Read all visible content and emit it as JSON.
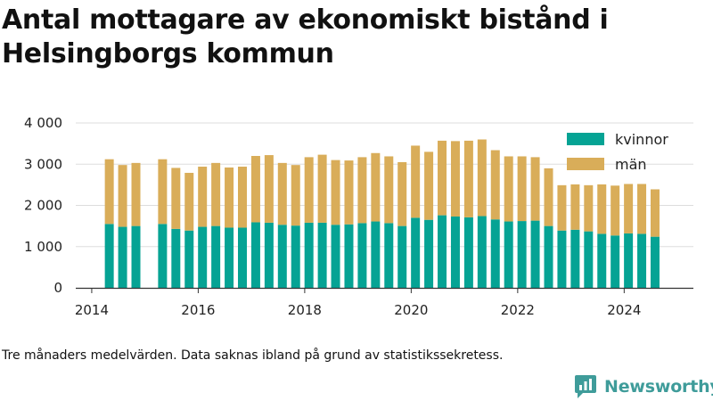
{
  "title": "Antal mottagare av ekonomiskt bistånd i Helsingborgs kommun",
  "note": "Tre månaders medelvärden. Data saknas ibland på grund av statistikssekretess.",
  "brand": {
    "name": "Newsworthy",
    "icon": "newsworthy-logo-icon",
    "color": "#3f9c9a"
  },
  "colors": {
    "kvinnor": "#05a394",
    "man": "#d9ad59",
    "axis": "#333333",
    "grid": "#dddddd"
  },
  "chart_data": {
    "type": "bar",
    "stacked": true,
    "title": "Antal mottagare av ekonomiskt bistånd i Helsingborgs kommun",
    "xlabel": "",
    "ylabel": "",
    "xlim": [
      2013.7,
      2025.3
    ],
    "ylim": [
      0,
      4000
    ],
    "x_ticks": [
      2014,
      2016,
      2018,
      2020,
      2022,
      2024
    ],
    "y_ticks": [
      0,
      1000,
      2000,
      3000,
      4000
    ],
    "y_tick_labels": [
      "0",
      "1 000",
      "2 000",
      "3 000",
      "4 000"
    ],
    "x_tick_labels": [
      "2014",
      "2016",
      "2018",
      "2020",
      "2022",
      "2024"
    ],
    "grid": true,
    "legend_position": "top-right",
    "x": [
      2014.33,
      2014.58,
      2014.83,
      2015.33,
      2015.58,
      2015.83,
      2016.08,
      2016.33,
      2016.58,
      2016.83,
      2017.08,
      2017.33,
      2017.58,
      2017.83,
      2018.08,
      2018.33,
      2018.58,
      2018.83,
      2019.08,
      2019.33,
      2019.58,
      2019.83,
      2020.08,
      2020.33,
      2020.58,
      2020.83,
      2021.08,
      2021.33,
      2021.58,
      2021.83,
      2022.08,
      2022.33,
      2022.58,
      2022.83,
      2023.08,
      2023.33,
      2023.58,
      2023.83,
      2024.08,
      2024.33,
      2024.58
    ],
    "series": [
      {
        "name": "kvinnor",
        "color": "#05a394",
        "values": [
          1550,
          1480,
          1500,
          1550,
          1430,
          1390,
          1480,
          1500,
          1460,
          1460,
          1590,
          1580,
          1530,
          1510,
          1580,
          1580,
          1530,
          1540,
          1570,
          1610,
          1570,
          1500,
          1700,
          1650,
          1760,
          1730,
          1710,
          1740,
          1660,
          1610,
          1620,
          1630,
          1500,
          1390,
          1410,
          1370,
          1310,
          1270,
          1320,
          1310,
          1240
        ]
      },
      {
        "name": "män",
        "color": "#d9ad59",
        "values": [
          1570,
          1500,
          1530,
          1570,
          1480,
          1400,
          1460,
          1530,
          1460,
          1480,
          1610,
          1640,
          1500,
          1470,
          1590,
          1650,
          1570,
          1550,
          1600,
          1660,
          1620,
          1550,
          1750,
          1650,
          1810,
          1830,
          1860,
          1860,
          1680,
          1580,
          1570,
          1540,
          1400,
          1100,
          1100,
          1120,
          1200,
          1210,
          1200,
          1210,
          1150
        ]
      }
    ]
  }
}
